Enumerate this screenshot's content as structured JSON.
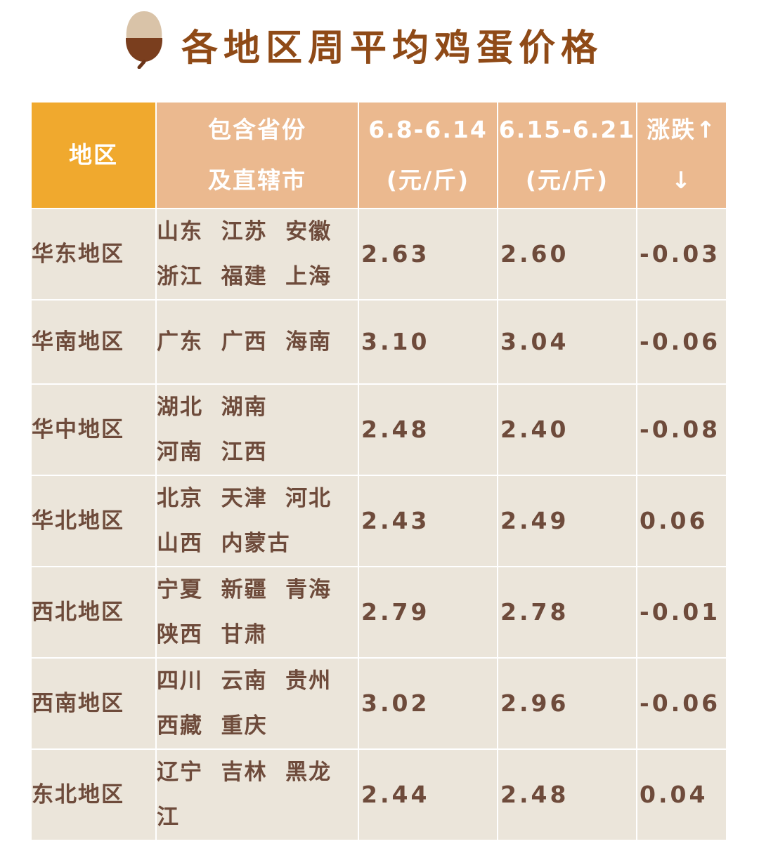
{
  "header": {
    "title": "各地区周平均鸡蛋价格"
  },
  "table": {
    "columns": [
      [
        "地区"
      ],
      [
        "包含省份",
        "及直辖市"
      ],
      [
        "6.8-6.14",
        "(元/斤)"
      ],
      [
        "6.15-6.21",
        "(元/斤)"
      ],
      [
        "涨跌↑",
        "↓"
      ]
    ],
    "rows": [
      {
        "region": "华东地区",
        "provinces": [
          "山东  江苏  安徽",
          "浙江  福建  上海"
        ],
        "week1": "2.63",
        "week2": "2.60",
        "change": "-0.03"
      },
      {
        "region": "华南地区",
        "provinces": [
          "广东  广西  海南"
        ],
        "week1": "3.10",
        "week2": "3.04",
        "change": "-0.06"
      },
      {
        "region": "华中地区",
        "provinces": [
          "湖北  湖南",
          "河南  江西"
        ],
        "week1": "2.48",
        "week2": "2.40",
        "change": "-0.08"
      },
      {
        "region": "华北地区",
        "provinces": [
          "北京  天津  河北",
          "山西  内蒙古"
        ],
        "week1": "2.43",
        "week2": "2.49",
        "change": "0.06"
      },
      {
        "region": "西北地区",
        "provinces": [
          "宁夏  新疆  青海",
          "陕西  甘肃"
        ],
        "week1": "2.79",
        "week2": "2.78",
        "change": "-0.01"
      },
      {
        "region": "西南地区",
        "provinces": [
          "四川  云南  贵州",
          "西藏  重庆"
        ],
        "week1": "3.02",
        "week2": "2.96",
        "change": "-0.06"
      },
      {
        "region": "东北地区",
        "provinces": [
          "辽宁  吉林  黑龙",
          "江"
        ],
        "week1": "2.44",
        "week2": "2.48",
        "change": "0.04"
      }
    ]
  }
}
